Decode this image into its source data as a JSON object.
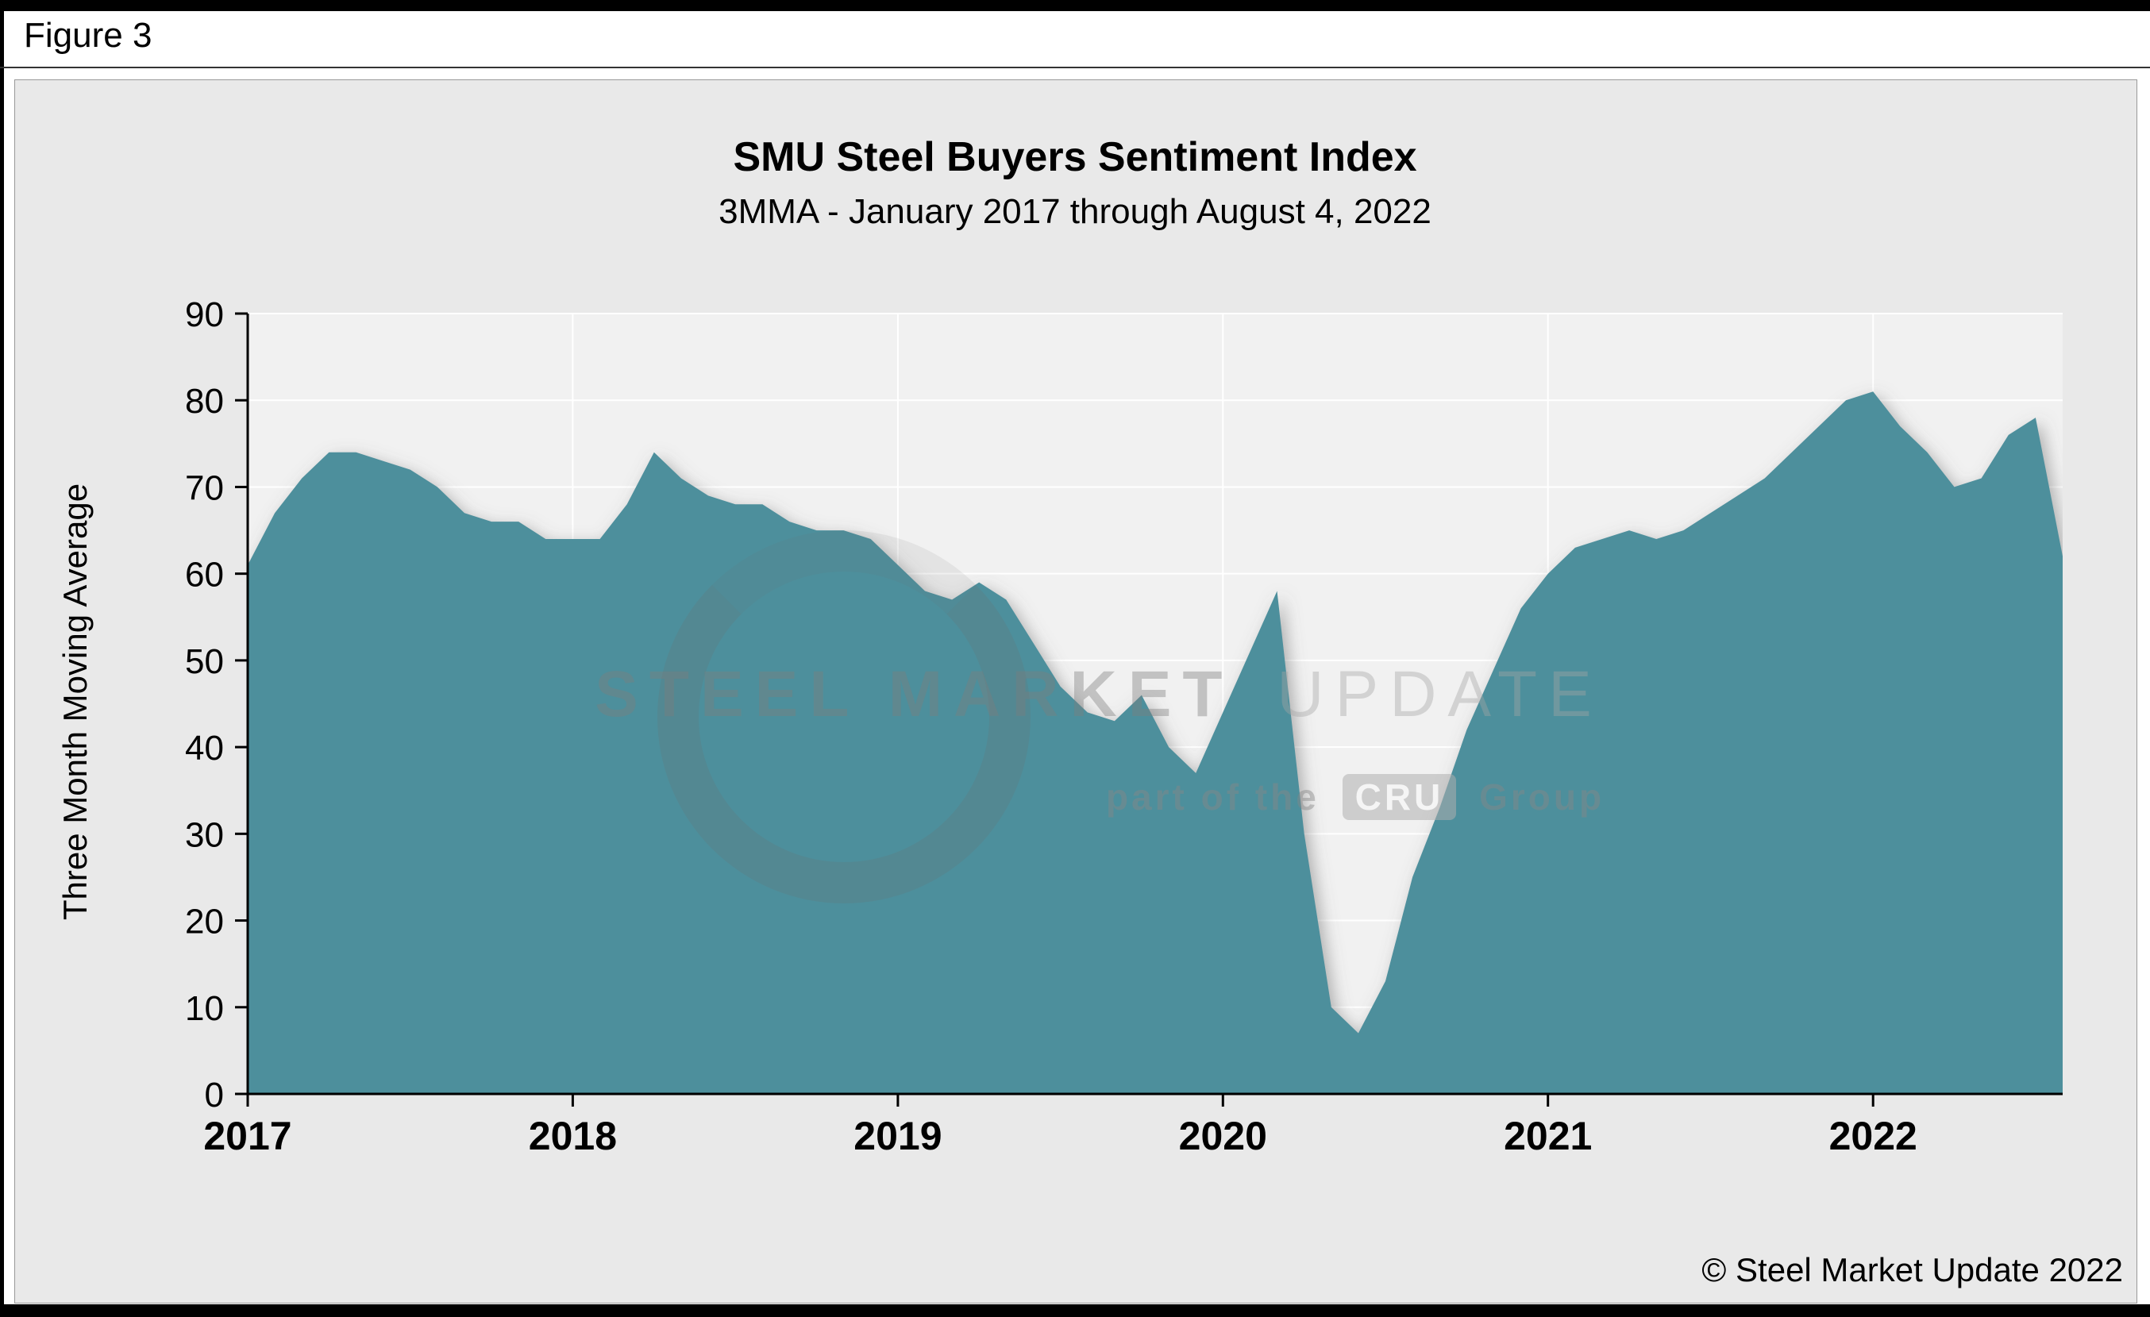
{
  "figure_label": "Figure 3",
  "copyright": "© Steel Market Update 2022",
  "watermark": {
    "line1_strong": "STEEL MARKET",
    "line1_light": "UPDATE",
    "line2_prefix": "part of the",
    "line2_logo": "CRU",
    "line2_suffix": "Group"
  },
  "colors": {
    "area": "#4D8F9C",
    "panel_bg": "#e9e9e9",
    "plot_bg": "#f1f1f1",
    "gridline": "#ffffff",
    "axis": "#000000"
  },
  "chart_data": {
    "type": "area",
    "title": "SMU Steel Buyers Sentiment Index",
    "subtitle": "3MMA - January 2017 through August 4, 2022",
    "ylabel": "Three Month Moving Average",
    "xlabel": "",
    "ylim": [
      0,
      90
    ],
    "ytick_step": 10,
    "grid": "horizontal and vertical year gridlines on",
    "legend": "none",
    "x_monthly": [
      "2017-01",
      "2017-02",
      "2017-03",
      "2017-04",
      "2017-05",
      "2017-06",
      "2017-07",
      "2017-08",
      "2017-09",
      "2017-10",
      "2017-11",
      "2017-12",
      "2018-01",
      "2018-02",
      "2018-03",
      "2018-04",
      "2018-05",
      "2018-06",
      "2018-07",
      "2018-08",
      "2018-09",
      "2018-10",
      "2018-11",
      "2018-12",
      "2019-01",
      "2019-02",
      "2019-03",
      "2019-04",
      "2019-05",
      "2019-06",
      "2019-07",
      "2019-08",
      "2019-09",
      "2019-10",
      "2019-11",
      "2019-12",
      "2020-01",
      "2020-02",
      "2020-03",
      "2020-04",
      "2020-05",
      "2020-06",
      "2020-07",
      "2020-08",
      "2020-09",
      "2020-10",
      "2020-11",
      "2020-12",
      "2021-01",
      "2021-02",
      "2021-03",
      "2021-04",
      "2021-05",
      "2021-06",
      "2021-07",
      "2021-08",
      "2021-09",
      "2021-10",
      "2021-11",
      "2021-12",
      "2022-01",
      "2022-02",
      "2022-03",
      "2022-04",
      "2022-05",
      "2022-06",
      "2022-07",
      "2022-08"
    ],
    "values": [
      61,
      67,
      71,
      74,
      74,
      73,
      72,
      70,
      67,
      66,
      66,
      64,
      64,
      64,
      68,
      74,
      71,
      69,
      68,
      68,
      66,
      65,
      65,
      64,
      61,
      58,
      57,
      59,
      57,
      52,
      47,
      44,
      43,
      46,
      40,
      37,
      44,
      51,
      58,
      30,
      10,
      7,
      13,
      25,
      33,
      42,
      49,
      56,
      60,
      63,
      64,
      65,
      64,
      65,
      67,
      69,
      71,
      74,
      77,
      80,
      81,
      77,
      74,
      70,
      71,
      76,
      78,
      62
    ],
    "year_ticks": [
      "2017",
      "2018",
      "2019",
      "2020",
      "2021",
      "2022"
    ],
    "year_tick_indices": [
      0,
      12,
      24,
      36,
      48,
      60
    ]
  }
}
